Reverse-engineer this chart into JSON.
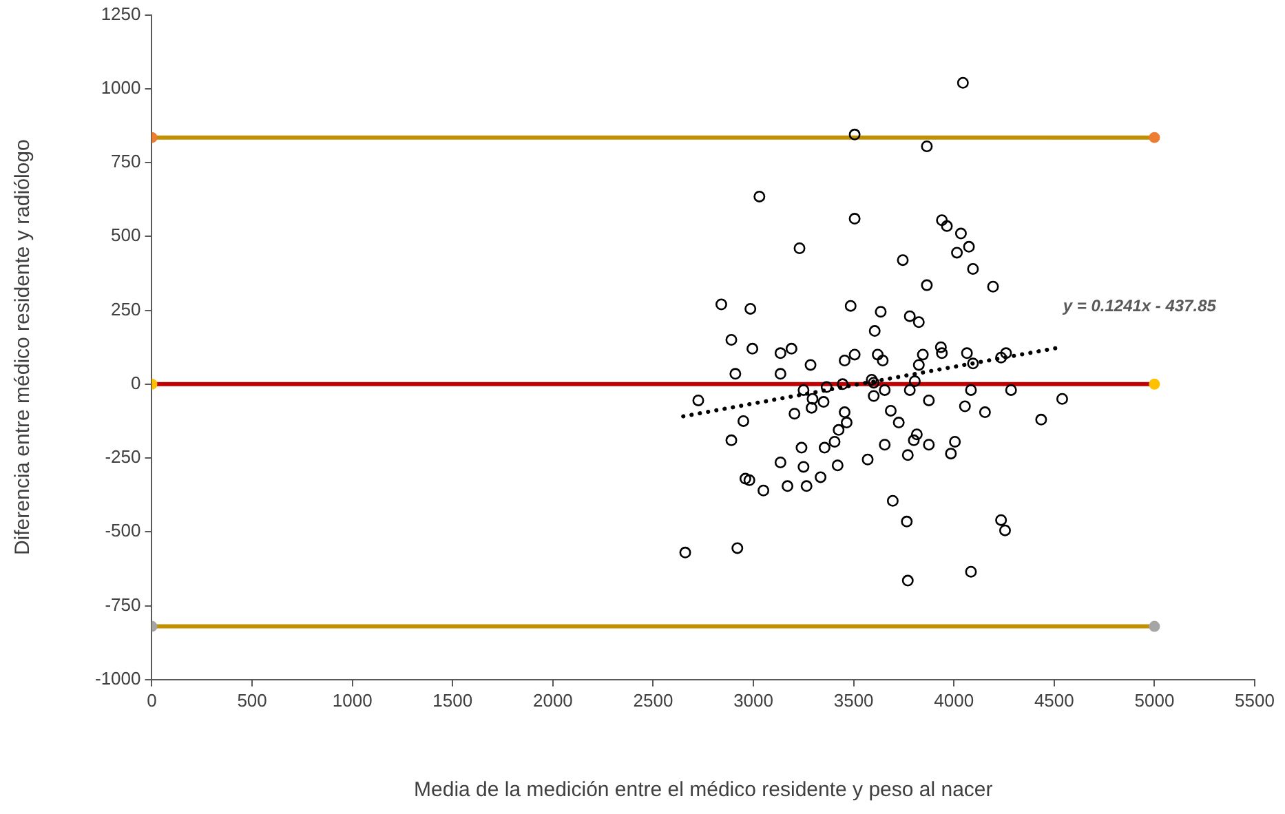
{
  "chart_data": {
    "type": "scatter",
    "xlabel": "Media de la medición entre el médico residente y peso al nacer",
    "ylabel": "Diferencia entre médico residente y radiólogo",
    "xlim": [
      0,
      5500
    ],
    "xticks": [
      0,
      500,
      1000,
      1500,
      2000,
      2500,
      3000,
      3500,
      4000,
      4500,
      5000,
      5500
    ],
    "ylim": [
      -1000,
      1250
    ],
    "yticks": [
      -1000,
      -750,
      -500,
      -250,
      0,
      250,
      500,
      750,
      1000,
      1250
    ],
    "grid": false,
    "legend": false,
    "annotations": [
      "y = 0.1241x - 437.85"
    ],
    "series": [
      {
        "type": "line",
        "color": "#bf9000",
        "colors": [
          "#ed7d31",
          "#ed7d31"
        ],
        "marker": "circle",
        "line_style": "solid",
        "x": [
          0,
          5000
        ],
        "values": [
          835,
          835
        ]
      },
      {
        "type": "line",
        "color": "#c00000",
        "colors": [
          "#ffc000",
          "#ffc000"
        ],
        "marker": "circle",
        "line_style": "solid",
        "x": [
          0,
          5000
        ],
        "values": [
          0,
          0
        ]
      },
      {
        "type": "line",
        "color": "#bf9000",
        "colors": [
          "#a5a5a5",
          "#a5a5a5"
        ],
        "marker": "circle",
        "line_style": "solid",
        "x": [
          0,
          5000
        ],
        "values": [
          -820,
          -820
        ]
      },
      {
        "type": "scatter",
        "color": "#000000",
        "marker": "circle",
        "x": [
          4045,
          3505,
          3865,
          3030,
          3505,
          3940,
          3965,
          4035,
          3230,
          4075,
          4015,
          3745,
          4095,
          3865,
          4195,
          2840,
          2985,
          3485,
          3635,
          3780,
          3825,
          3605,
          2890,
          2995,
          3135,
          3190,
          3285,
          3455,
          3505,
          3620,
          3645,
          3845,
          3935,
          3940,
          4065,
          4095,
          4235,
          4260,
          3825,
          2910,
          3135,
          3805,
          3590,
          3600,
          3445,
          3365,
          3250,
          3655,
          3780,
          4085,
          4285,
          2725,
          3295,
          3350,
          3290,
          3600,
          3875,
          4540,
          4055,
          4155,
          3685,
          3205,
          3455,
          3465,
          3425,
          3725,
          4435,
          2950,
          2890,
          3405,
          3355,
          3240,
          3655,
          3815,
          3800,
          3875,
          4005,
          3985,
          3770,
          3570,
          3135,
          3250,
          3420,
          3335,
          2960,
          2980,
          3050,
          3170,
          3265,
          3695,
          3765,
          4235,
          4255,
          2660,
          2920,
          4085,
          3770
        ],
        "values": [
          1020,
          845,
          805,
          635,
          560,
          555,
          535,
          510,
          460,
          465,
          445,
          420,
          390,
          335,
          330,
          270,
          255,
          265,
          245,
          230,
          210,
          180,
          150,
          120,
          105,
          120,
          65,
          80,
          100,
          100,
          80,
          100,
          125,
          105,
          105,
          70,
          90,
          105,
          65,
          35,
          35,
          10,
          15,
          5,
          0,
          -10,
          -20,
          -20,
          -20,
          -20,
          -20,
          -55,
          -50,
          -60,
          -80,
          -40,
          -55,
          -50,
          -75,
          -95,
          -90,
          -100,
          -95,
          -130,
          -155,
          -130,
          -120,
          -125,
          -190,
          -195,
          -215,
          -215,
          -205,
          -170,
          -190,
          -205,
          -195,
          -235,
          -240,
          -255,
          -265,
          -280,
          -275,
          -315,
          -320,
          -325,
          -360,
          -345,
          -345,
          -395,
          -465,
          -460,
          -495,
          -570,
          -555,
          -635,
          -665
        ]
      },
      {
        "type": "line",
        "color": "#000000",
        "marker": "none",
        "line_style": "dotted",
        "x": [
          2650,
          4510
        ],
        "values": [
          -109,
          122
        ]
      }
    ]
  }
}
